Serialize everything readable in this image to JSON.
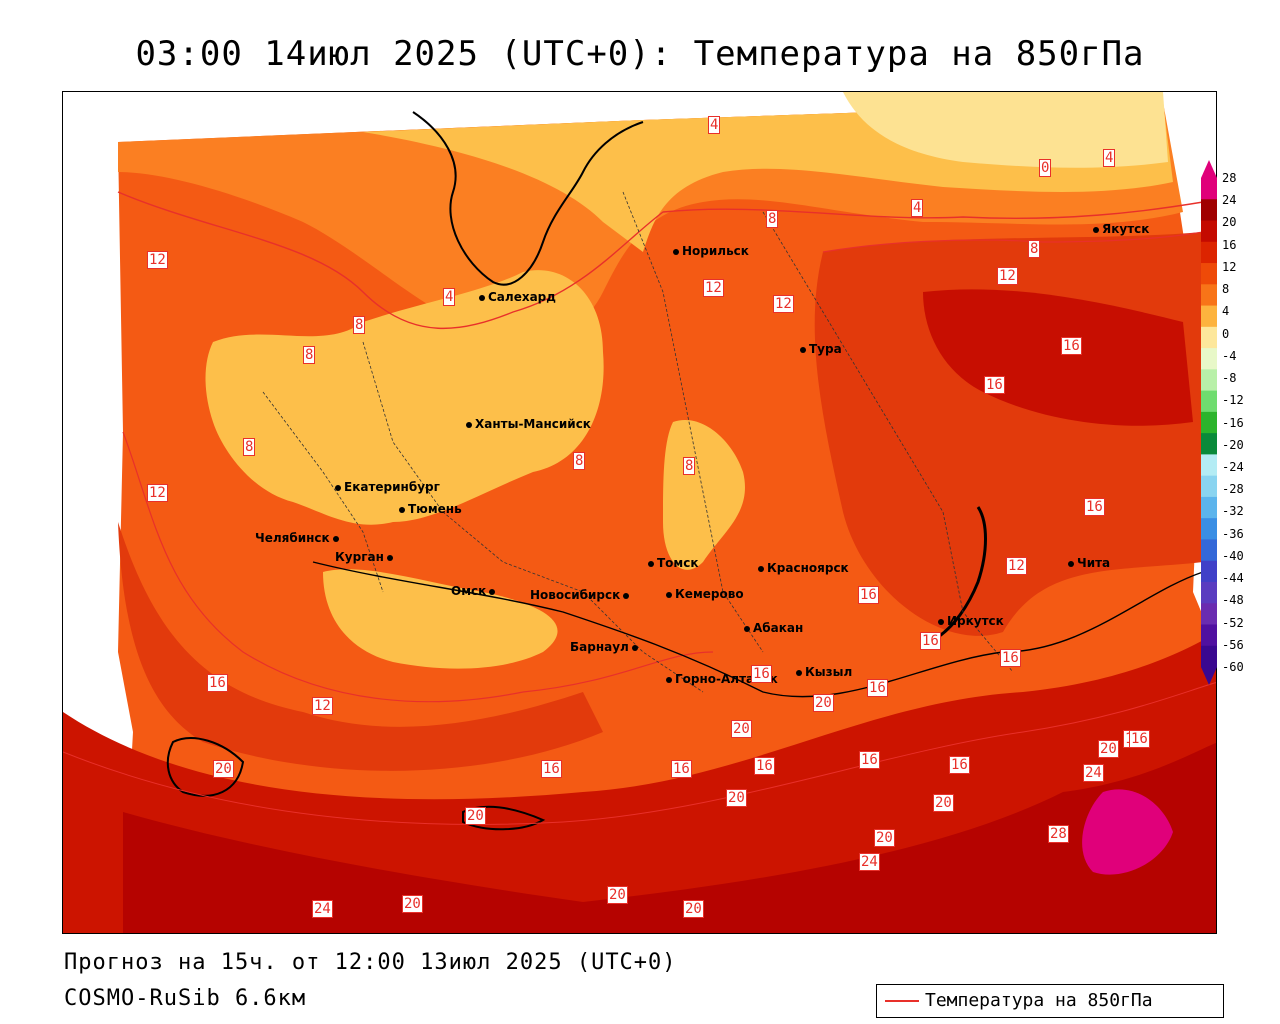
{
  "title": "03:00 14июл 2025 (UTC+0): Температура на 850гПа",
  "footer": {
    "forecast": "Прогноз на 15ч. от 12:00 13июл 2025 (UTC+0)",
    "model": "COSMO-RuSib 6.6км"
  },
  "legend": {
    "label": "Температура на 850гПа",
    "line_color": "#e8302a"
  },
  "colors": {
    "t28": "#e0007a",
    "t24": "#b00000",
    "t20": "#cc1400",
    "t16": "#e23a0c",
    "t12": "#f45a14",
    "t8": "#fb7f22",
    "t4": "#fdbf4a",
    "t0": "#fde292",
    "contour": "#e8302a"
  },
  "colorbar": {
    "labels": [
      "28",
      "24",
      "20",
      "16",
      "12",
      "8",
      "4",
      "0",
      "-4",
      "-8",
      "-12",
      "-16",
      "-20",
      "-24",
      "-28",
      "-32",
      "-36",
      "-40",
      "-44",
      "-48",
      "-52",
      "-56",
      "-60"
    ],
    "colors": [
      "#e0007a",
      "#a00000",
      "#c40a00",
      "#dc2400",
      "#ee4a08",
      "#f87418",
      "#fdb33e",
      "#fde79b",
      "#e8f8c8",
      "#b8f0a8",
      "#6fdc6f",
      "#2cb42c",
      "#0a8a3a",
      "#b4ecf4",
      "#8ad4f0",
      "#5cb4ec",
      "#3a8ee4",
      "#3468d8",
      "#4040c8",
      "#5a3cc0",
      "#6a2cb0",
      "#5010a0",
      "#3a0890"
    ]
  },
  "cities": [
    {
      "name": "Якутск"
    },
    {
      "name": "Норильск"
    },
    {
      "name": "Салехард"
    },
    {
      "name": "Тура"
    },
    {
      "name": "Ханты-Мансийск"
    },
    {
      "name": "Екатеринбург"
    },
    {
      "name": "Тюмень"
    },
    {
      "name": "Челябинск"
    },
    {
      "name": "Курган"
    },
    {
      "name": "Омск"
    },
    {
      "name": "Новосибирск"
    },
    {
      "name": "Томск"
    },
    {
      "name": "Кемерово"
    },
    {
      "name": "Красноярск"
    },
    {
      "name": "Барнаул"
    },
    {
      "name": "Абакан"
    },
    {
      "name": "Иркутск"
    },
    {
      "name": "Чита"
    },
    {
      "name": "Горно-Алтайск"
    },
    {
      "name": "Кызыл"
    }
  ],
  "contour_labels": [
    "4",
    "4",
    "0",
    "4",
    "8",
    "4",
    "8",
    "12",
    "12",
    "12",
    "8",
    "8",
    "12",
    "8",
    "16",
    "16",
    "8",
    "8",
    "12",
    "16",
    "12",
    "16",
    "16",
    "16",
    "16",
    "16",
    "16",
    "12",
    "16",
    "20",
    "20",
    "20",
    "16",
    "24",
    "20",
    "16",
    "16",
    "20",
    "20",
    "16",
    "20",
    "24",
    "28",
    "20",
    "20",
    "24",
    "20",
    "20",
    "16",
    "16"
  ]
}
